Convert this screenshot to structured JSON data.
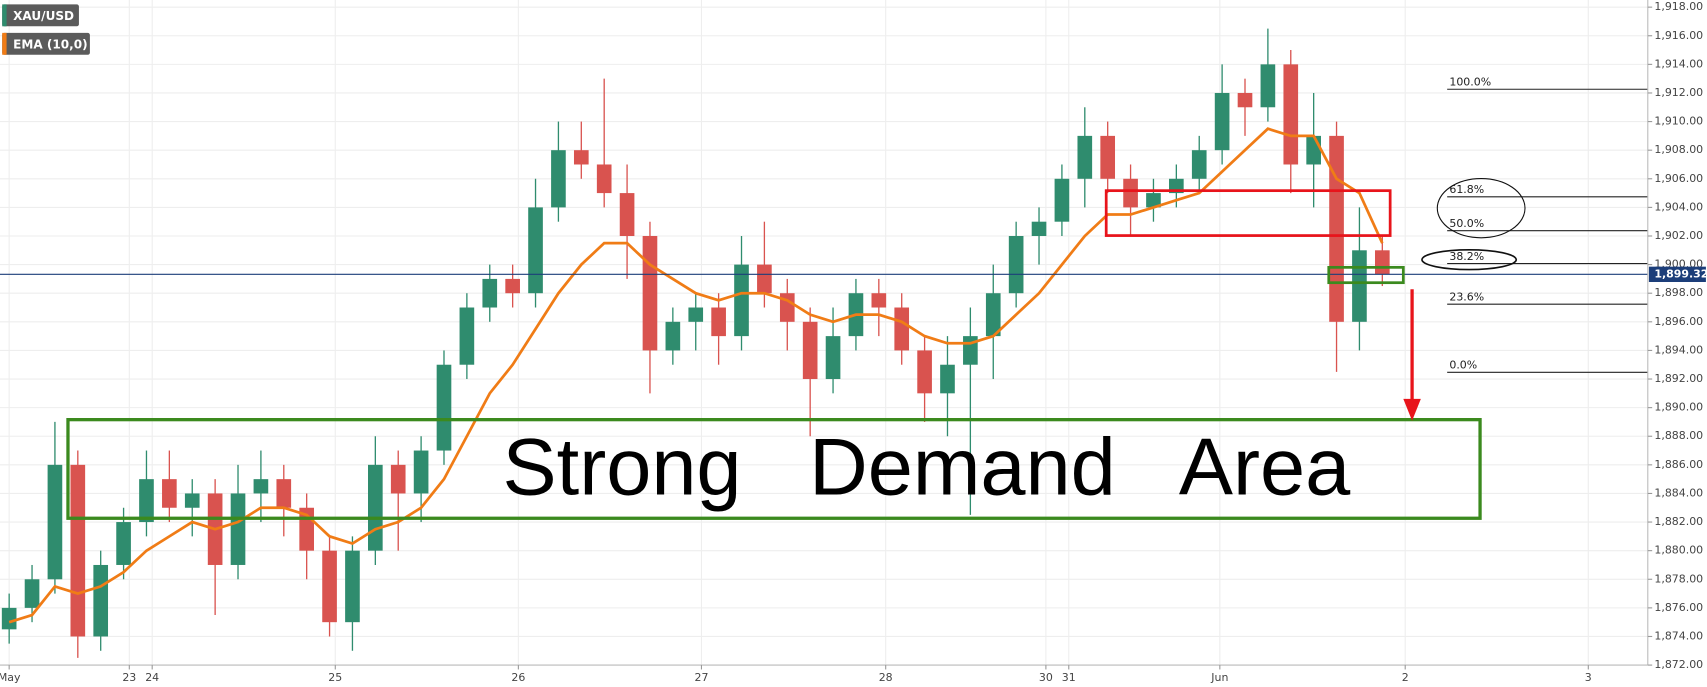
{
  "chart_data": {
    "type": "candlestick",
    "up_color": "#2f8c6e",
    "down_color": "#d9534f",
    "grid": true,
    "xlim": [
      -0.4,
      71.6
    ],
    "ylim": [
      1872,
      1918.5
    ],
    "xticks": [
      {
        "value": 0,
        "label": "May"
      },
      {
        "value": 5.25,
        "label": "23"
      },
      {
        "value": 6.25,
        "label": "24"
      },
      {
        "value": 14.25,
        "label": "25"
      },
      {
        "value": 22.25,
        "label": "26"
      },
      {
        "value": 30.25,
        "label": "27"
      },
      {
        "value": 38.3,
        "label": "28"
      },
      {
        "value": 45.3,
        "label": "30"
      },
      {
        "value": 46.3,
        "label": "31"
      },
      {
        "value": 52.9,
        "label": "Jun"
      },
      {
        "value": 61,
        "label": "2"
      },
      {
        "value": 69,
        "label": "3"
      }
    ],
    "yticks": [
      {
        "value": 1872,
        "label": "1,872.00"
      },
      {
        "value": 1874,
        "label": "1,874.00"
      },
      {
        "value": 1876,
        "label": "1,876.00"
      },
      {
        "value": 1878,
        "label": "1,878.00"
      },
      {
        "value": 1880,
        "label": "1,880.00"
      },
      {
        "value": 1882,
        "label": "1,882.00"
      },
      {
        "value": 1884,
        "label": "1,884.00"
      },
      {
        "value": 1886,
        "label": "1,886.00"
      },
      {
        "value": 1888,
        "label": "1,888.00"
      },
      {
        "value": 1890,
        "label": "1,890.00"
      },
      {
        "value": 1892,
        "label": "1,892.00"
      },
      {
        "value": 1894,
        "label": "1,894.00"
      },
      {
        "value": 1896,
        "label": "1,896.00"
      },
      {
        "value": 1898,
        "label": "1,898.00"
      },
      {
        "value": 1900,
        "label": "1,900.00"
      },
      {
        "value": 1902,
        "label": "1,902.00"
      },
      {
        "value": 1904,
        "label": "1,904.00"
      },
      {
        "value": 1906,
        "label": "1,906.00"
      },
      {
        "value": 1908,
        "label": "1,908.00"
      },
      {
        "value": 1910,
        "label": "1,910.00"
      },
      {
        "value": 1912,
        "label": "1,912.00"
      },
      {
        "value": 1914,
        "label": "1,914.00"
      },
      {
        "value": 1916,
        "label": "1,916.00"
      },
      {
        "value": 1918,
        "label": "1,918.00"
      }
    ],
    "candles": {
      "name": "XAU/USD",
      "x": [
        0,
        1,
        2,
        3,
        4,
        5,
        6,
        7,
        8,
        9,
        10,
        11,
        12,
        13,
        14,
        15,
        16,
        17,
        18,
        19,
        20,
        21,
        22,
        23,
        24,
        25,
        26,
        27,
        28,
        29,
        30,
        31,
        32,
        33,
        34,
        35,
        36,
        37,
        38,
        39,
        40,
        41,
        42,
        43,
        44,
        45,
        46,
        47,
        48,
        49,
        50,
        51,
        52,
        53,
        54,
        55,
        56,
        57,
        58,
        59,
        60
      ],
      "open": [
        1874.5,
        1876,
        1878,
        1886,
        1874,
        1879,
        1882,
        1885,
        1883,
        1884,
        1879,
        1884,
        1885,
        1883,
        1880,
        1875,
        1880,
        1886,
        1884,
        1887,
        1893,
        1897,
        1899,
        1898,
        1904,
        1908,
        1907,
        1905,
        1902,
        1894,
        1896,
        1897,
        1895,
        1900,
        1898,
        1896,
        1892,
        1895,
        1898,
        1897,
        1894,
        1891,
        1893,
        1895,
        1898,
        1902,
        1903,
        1906,
        1909,
        1906,
        1904,
        1905,
        1906,
        1908,
        1912,
        1911,
        1914,
        1907,
        1909,
        1896,
        1901
      ],
      "high": [
        1877,
        1879,
        1889,
        1887,
        1880,
        1883,
        1887,
        1887,
        1885,
        1885,
        1886,
        1887,
        1886,
        1884,
        1881,
        1881,
        1888,
        1887,
        1888,
        1894,
        1898,
        1900,
        1900,
        1906,
        1910,
        1910,
        1913,
        1907,
        1903,
        1897,
        1898,
        1898,
        1902,
        1903,
        1899,
        1897,
        1897,
        1899,
        1899,
        1898,
        1895,
        1895,
        1897,
        1900,
        1903,
        1904,
        1907,
        1911,
        1910,
        1907,
        1906,
        1907,
        1909,
        1914,
        1913,
        1916.5,
        1915,
        1912,
        1910,
        1904,
        1902
      ],
      "low": [
        1873.5,
        1875,
        1877,
        1872.5,
        1873,
        1878,
        1881,
        1882,
        1881,
        1875.5,
        1878,
        1882,
        1881,
        1878,
        1874,
        1873,
        1879,
        1880,
        1882,
        1886,
        1892,
        1896,
        1897,
        1897,
        1903,
        1906,
        1904,
        1899,
        1891,
        1893,
        1894,
        1893,
        1894,
        1897,
        1894,
        1888,
        1891,
        1894,
        1895,
        1893,
        1889,
        1888,
        1882.5,
        1892,
        1897,
        1900,
        1902,
        1904,
        1905,
        1902,
        1903,
        1904,
        1905,
        1907,
        1909,
        1910,
        1905,
        1904,
        1892.5,
        1894,
        1898.5
      ],
      "close": [
        1876,
        1878,
        1886,
        1874,
        1879,
        1882,
        1885,
        1883,
        1884,
        1879,
        1884,
        1885,
        1883,
        1880,
        1875,
        1880,
        1886,
        1884,
        1887,
        1893,
        1897,
        1899,
        1898,
        1904,
        1908,
        1907,
        1905,
        1902,
        1894,
        1896,
        1897,
        1895,
        1900,
        1898,
        1896,
        1892,
        1895,
        1898,
        1897,
        1894,
        1891,
        1893,
        1895,
        1898,
        1902,
        1903,
        1906,
        1909,
        1906,
        1904,
        1905,
        1906,
        1908,
        1912,
        1911,
        1914,
        1907,
        1909,
        1896,
        1901,
        1899.32
      ]
    },
    "ema": {
      "name": "EMA (10,0)",
      "color": "#f07c16",
      "values": [
        1875,
        1875.5,
        1877.5,
        1877,
        1877.5,
        1878.5,
        1880,
        1881,
        1882,
        1881.5,
        1882,
        1883,
        1883,
        1882.5,
        1881,
        1880.5,
        1881.5,
        1882,
        1883,
        1885,
        1888,
        1891,
        1893,
        1895.5,
        1898,
        1900,
        1901.5,
        1901.5,
        1900,
        1899,
        1898,
        1897.5,
        1898,
        1898,
        1897.5,
        1896.5,
        1896,
        1896.5,
        1896.5,
        1896,
        1895,
        1894.5,
        1894.5,
        1895,
        1896.5,
        1898,
        1900,
        1902,
        1903.5,
        1903.5,
        1904,
        1904.5,
        1905,
        1906.5,
        1908,
        1909.5,
        1909,
        1909,
        1906,
        1905,
        1901.5
      ]
    },
    "last_price": {
      "value": 1899.32,
      "label": "1,899.32"
    },
    "fib_levels": [
      {
        "label": "100.0%",
        "price": 1912.26
      },
      {
        "label": "61.8%",
        "price": 1904.74
      },
      {
        "label": "50.0%",
        "price": 1902.37
      },
      {
        "label": "38.2%",
        "price": 1900.07
      },
      {
        "label": "23.6%",
        "price": 1897.23
      },
      {
        "label": "0.0%",
        "price": 1892.47
      }
    ],
    "annotation": "Strong   Demand   Area"
  }
}
